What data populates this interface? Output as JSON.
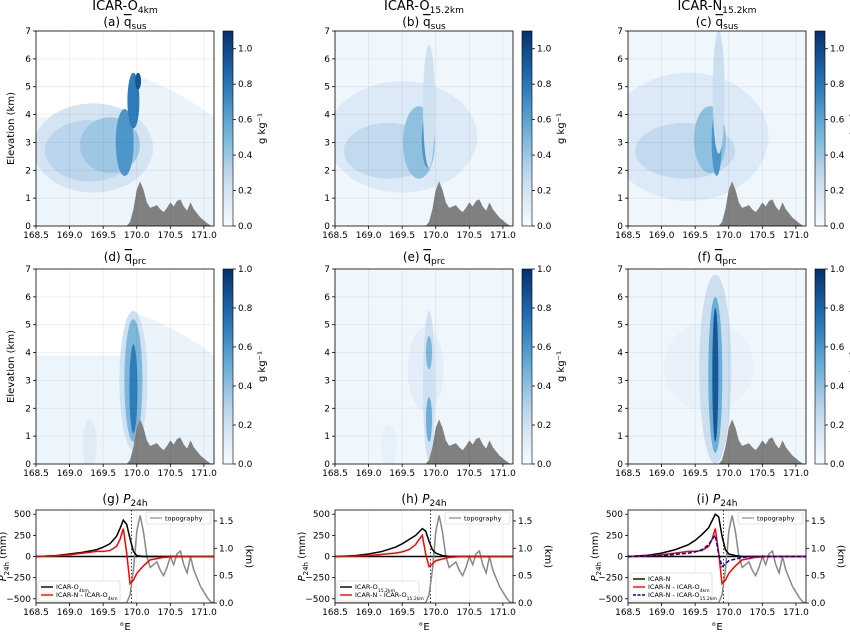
{
  "figure": {
    "column_titles": [
      {
        "main": "ICAR-O",
        "sub": "4km"
      },
      {
        "main": "ICAR-O",
        "sub": "15.2km"
      },
      {
        "main": "ICAR-N",
        "sub": "15.2km"
      }
    ],
    "xlabel": "°E",
    "x_ticks": [
      "168.5",
      "169.0",
      "169.5",
      "170.0",
      "170.5",
      "171.0"
    ],
    "elev_ticks": [
      "0",
      "1",
      "2",
      "3",
      "4",
      "5",
      "6",
      "7"
    ],
    "elev_label": "Elevation (km)",
    "cbar_label": "g kg⁻¹",
    "cbar_ticks_sus": [
      "0.0",
      "0.2",
      "0.4",
      "0.6",
      "0.8",
      "1.0"
    ],
    "cbar_ticks_prc": [
      "0.0",
      "0.2",
      "0.4",
      "0.6",
      "0.8",
      "1.0"
    ],
    "p_ticks": [
      "−500",
      "−250",
      "0",
      "250",
      "500"
    ],
    "p_label": "P",
    "p_label_sub": "24h",
    "p_label_unit": " (mm)",
    "km_ticks": [
      "0.0",
      "0.5",
      "1.0",
      "1.5"
    ],
    "km_label": "(km)",
    "topo_legend": "topography",
    "panels_sus": [
      {
        "letter": "(a)"
      },
      {
        "letter": "(b)"
      },
      {
        "letter": "(c)"
      }
    ],
    "panels_prc": [
      {
        "letter": "(d)"
      },
      {
        "letter": "(e)"
      },
      {
        "letter": "(f)"
      }
    ],
    "panels_p": [
      {
        "letter": "(g)",
        "legend": [
          {
            "main": "ICAR-O",
            "sub": "4km"
          },
          {
            "main": "ICAR-N - ICAR-O",
            "sub": "4km"
          }
        ]
      },
      {
        "letter": "(h)",
        "legend": [
          {
            "main": "ICAR-O",
            "sub": "15.2km"
          },
          {
            "main": "ICAR-N - ICAR-O",
            "sub": "15.2km"
          }
        ]
      },
      {
        "letter": "(i)",
        "legend": [
          {
            "main": "ICAR-N",
            "sub": ""
          },
          {
            "main": "ICAR-N - ICAR-O",
            "sub": "4km"
          },
          {
            "main": "ICAR-N - ICAR-O",
            "sub": "15.2km"
          }
        ]
      }
    ],
    "sus_title": {
      "q": "q",
      "sub": "sus"
    },
    "prc_title": {
      "q": "q",
      "sub": "prc"
    },
    "p_title": {
      "p": "P",
      "sub": "24h"
    }
  },
  "chart_data": {
    "type": "area",
    "x_range": [
      168.5,
      171.15
    ],
    "elevation_range_km": [
      0,
      7
    ],
    "colorbar_range_sus": [
      0,
      1.1
    ],
    "colorbar_range_prc": [
      0,
      1.0
    ],
    "colormap": "Blues",
    "topography_km": {
      "x": [
        168.5,
        169.85,
        169.9,
        169.95,
        170.0,
        170.05,
        170.1,
        170.15,
        170.2,
        170.25,
        170.3,
        170.35,
        170.4,
        170.45,
        170.5,
        170.55,
        170.6,
        170.65,
        170.7,
        170.75,
        170.8,
        170.85,
        170.9,
        170.95,
        171.0,
        171.05,
        171.1,
        171.15
      ],
      "y": [
        0.0,
        0.0,
        0.15,
        0.6,
        1.3,
        1.6,
        1.3,
        0.85,
        0.65,
        0.7,
        0.75,
        0.6,
        0.5,
        0.65,
        0.85,
        0.7,
        0.9,
        0.95,
        0.7,
        0.55,
        0.85,
        0.6,
        0.45,
        0.3,
        0.2,
        0.1,
        0.02,
        0.0
      ]
    },
    "precip_24h": {
      "ylim_mm": [
        -550,
        550
      ],
      "topo_axis_km": [
        0,
        1.7
      ],
      "x": [
        168.5,
        168.8,
        169.0,
        169.2,
        169.4,
        169.5,
        169.6,
        169.7,
        169.75,
        169.8,
        169.85,
        169.9,
        169.95,
        170.0,
        170.1,
        170.2,
        170.4,
        170.6,
        170.8,
        171.0,
        171.15
      ],
      "panels": [
        {
          "series": [
            {
              "name": "ICAR-O4km",
              "color": "#000000",
              "values": [
                0,
                10,
                30,
                50,
                80,
                110,
                150,
                240,
                330,
                430,
                380,
                210,
                60,
                10,
                0,
                0,
                0,
                0,
                0,
                0,
                0
              ]
            },
            {
              "name": "ICAR-N - ICAR-O4km",
              "color": "#ff0000",
              "values": [
                0,
                8,
                20,
                40,
                60,
                60,
                70,
                120,
                200,
                330,
                40,
                -320,
                -280,
                -200,
                -110,
                -40,
                -10,
                0,
                0,
                0,
                0
              ]
            }
          ]
        },
        {
          "series": [
            {
              "name": "ICAR-O15.2km",
              "color": "#000000",
              "values": [
                0,
                10,
                30,
                60,
                110,
                150,
                200,
                250,
                290,
                330,
                300,
                180,
                80,
                40,
                10,
                0,
                0,
                0,
                0,
                0,
                0
              ]
            },
            {
              "name": "ICAR-N - ICAR-O15.2km",
              "color": "#ff0000",
              "values": [
                0,
                5,
                10,
                25,
                40,
                55,
                80,
                140,
                200,
                250,
                30,
                -120,
                -90,
                -50,
                -30,
                -10,
                0,
                0,
                0,
                0,
                0
              ]
            }
          ]
        },
        {
          "series": [
            {
              "name": "ICAR-N",
              "color": "#000000",
              "values": [
                0,
                15,
                40,
                80,
                140,
                190,
                260,
                340,
                420,
                500,
                470,
                240,
                80,
                30,
                10,
                0,
                0,
                0,
                0,
                0,
                0
              ]
            },
            {
              "name": "ICAR-N - ICAR-O4km",
              "color": "#ff0000",
              "values": [
                0,
                8,
                20,
                40,
                60,
                60,
                70,
                120,
                200,
                330,
                40,
                -320,
                -280,
                -200,
                -110,
                -40,
                -10,
                0,
                0,
                0,
                0
              ]
            },
            {
              "name": "ICAR-N - ICAR-O15.2km",
              "color": "#0000aa",
              "dash": true,
              "values": [
                0,
                5,
                10,
                25,
                40,
                55,
                80,
                140,
                200,
                250,
                30,
                -120,
                -90,
                -50,
                -30,
                -10,
                0,
                0,
                0,
                0,
                0
              ]
            }
          ]
        }
      ]
    }
  }
}
